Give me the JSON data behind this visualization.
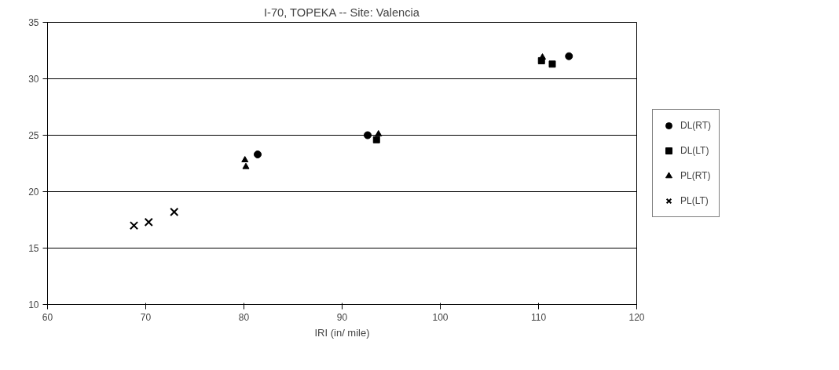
{
  "chart_data": {
    "type": "scatter",
    "title": "I-70, TOPEKA -- Site: Valencia",
    "xlabel": "IRI (in/ mile)",
    "xlim": [
      60,
      120
    ],
    "xticks": [
      60,
      70,
      80,
      90,
      100,
      110,
      120
    ],
    "ylim": [
      10,
      35
    ],
    "yticks": [
      10,
      15,
      20,
      25,
      30,
      35
    ],
    "grid": "y",
    "legend": "right",
    "series": [
      {
        "name": "DL(RT)",
        "color": "#000000",
        "marker": "circle",
        "x": [
          81.4,
          92.6,
          113.1
        ],
        "values": [
          23.3,
          25.0,
          32.0
        ]
      },
      {
        "name": "DL(LT)",
        "color": "#000000",
        "marker": "square",
        "x": [
          93.5,
          110.3,
          111.4
        ],
        "values": [
          24.6,
          31.6,
          31.3
        ]
      },
      {
        "name": "PL(RT)",
        "color": "#000000",
        "marker": "triangle",
        "x": [
          80.1,
          80.2,
          93.7,
          110.4
        ],
        "values": [
          22.8,
          22.2,
          25.1,
          31.9
        ]
      },
      {
        "name": "PL(LT)",
        "color": "#000000",
        "marker": "cross",
        "x": [
          68.8,
          70.3,
          72.9
        ],
        "values": [
          17.0,
          17.3,
          18.2
        ]
      }
    ]
  }
}
